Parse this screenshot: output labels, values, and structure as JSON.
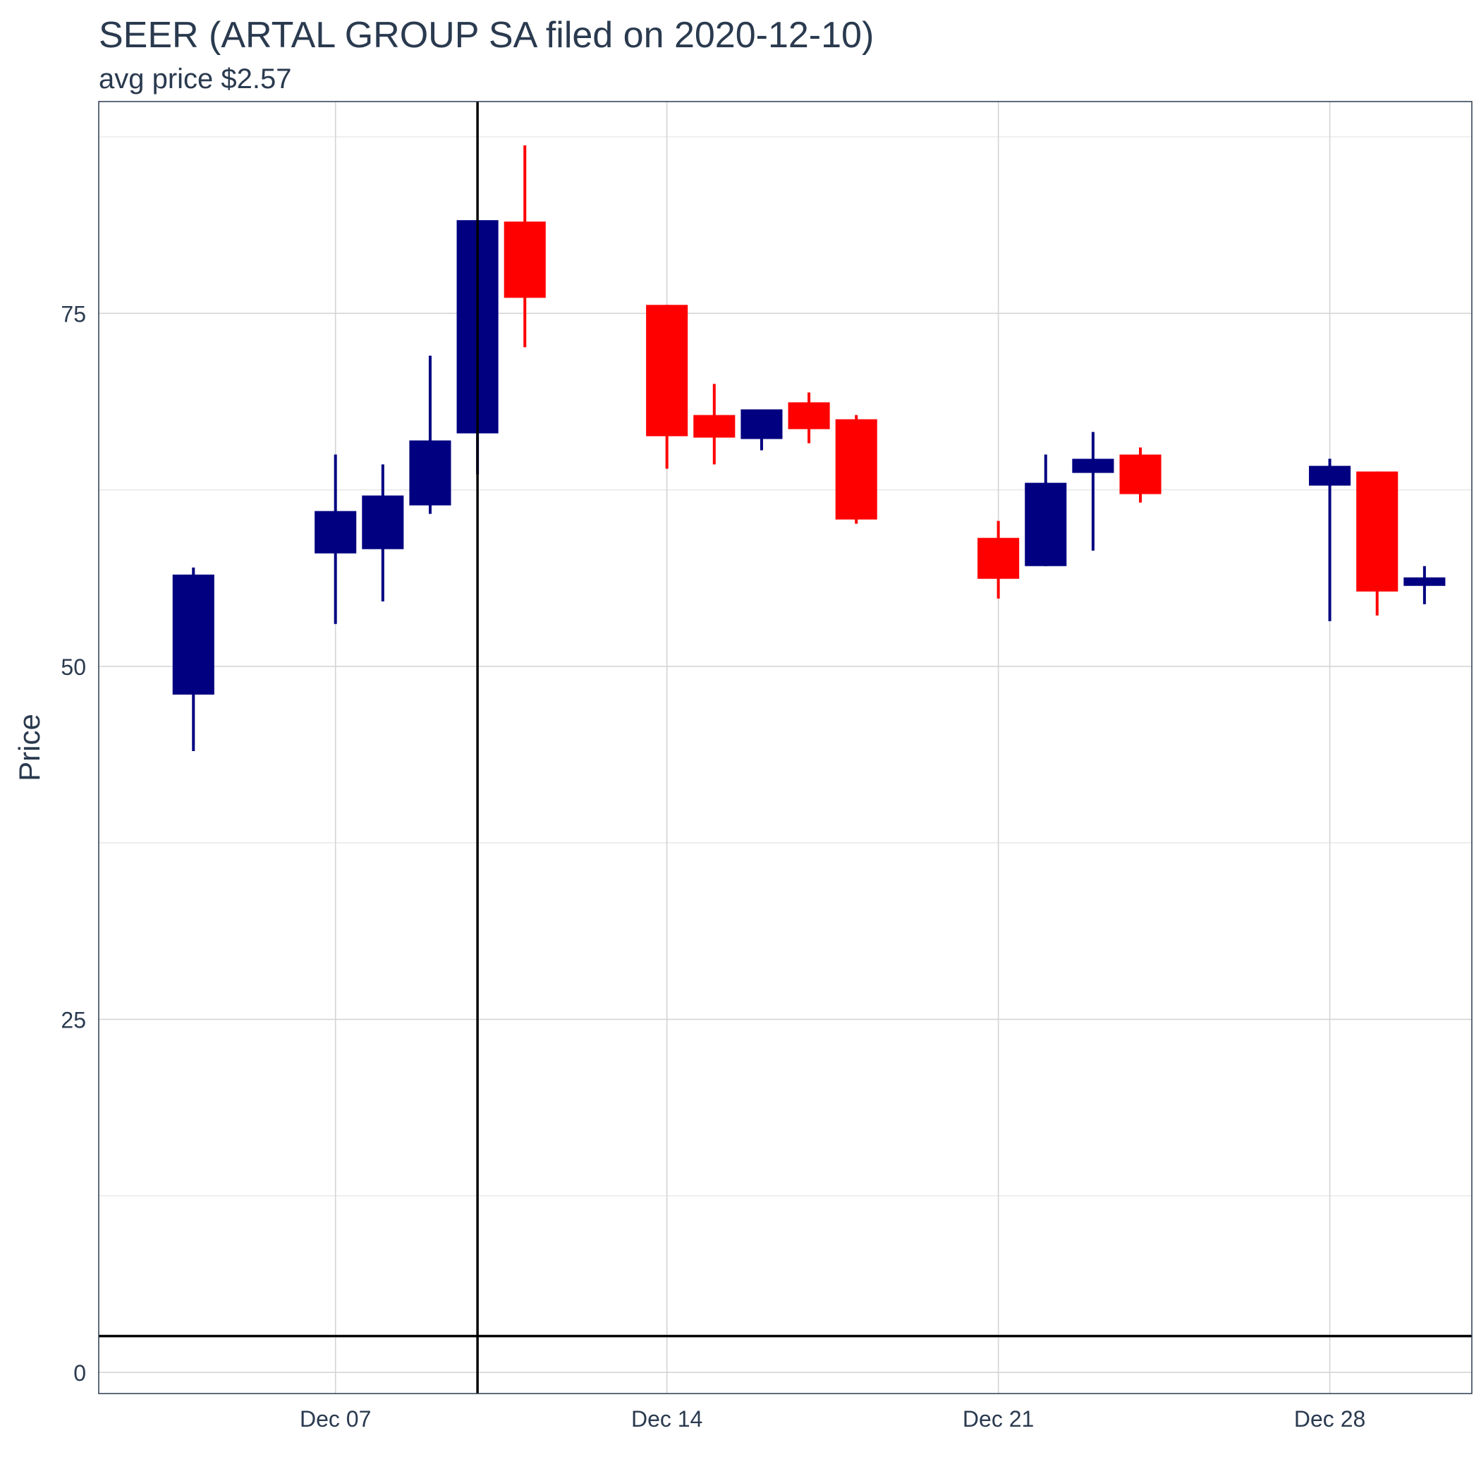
{
  "chart_data": {
    "type": "candlestick",
    "title": "SEER (ARTAL GROUP SA filed on 2020-12-10)",
    "subtitle": "avg price $2.57",
    "ylabel": "Price",
    "xlabel": "",
    "ylim": [
      -1.5,
      90
    ],
    "x_ticks": [
      {
        "label": "Dec 07",
        "date": "2020-12-07"
      },
      {
        "label": "Dec 14",
        "date": "2020-12-14"
      },
      {
        "label": "Dec 21",
        "date": "2020-12-21"
      },
      {
        "label": "Dec 28",
        "date": "2020-12-28"
      }
    ],
    "x_range": [
      "2020-12-02",
      "2020-12-31"
    ],
    "y_ticks": [
      0,
      25,
      50,
      75
    ],
    "grid": true,
    "colors": {
      "up": "#000080",
      "down": "#ff0000",
      "reference": "#000000"
    },
    "reference_lines": {
      "vertical_date": "2020-12-10",
      "horizontal_price": 2.57
    },
    "candles": [
      {
        "date": "2020-12-04",
        "open": 48.0,
        "high": 57.0,
        "low": 44.0,
        "close": 56.5
      },
      {
        "date": "2020-12-07",
        "open": 58.0,
        "high": 65.0,
        "low": 53.0,
        "close": 61.0
      },
      {
        "date": "2020-12-08",
        "open": 58.3,
        "high": 64.3,
        "low": 54.6,
        "close": 62.1
      },
      {
        "date": "2020-12-09",
        "open": 61.4,
        "high": 72.0,
        "low": 60.8,
        "close": 66.0
      },
      {
        "date": "2020-12-10",
        "open": 66.5,
        "high": 81.6,
        "low": 63.6,
        "close": 81.6
      },
      {
        "date": "2020-12-11",
        "open": 81.5,
        "high": 86.9,
        "low": 72.6,
        "close": 76.1
      },
      {
        "date": "2020-12-14",
        "open": 75.6,
        "high": 75.6,
        "low": 64.0,
        "close": 66.3
      },
      {
        "date": "2020-12-15",
        "open": 67.8,
        "high": 70.0,
        "low": 64.3,
        "close": 66.2
      },
      {
        "date": "2020-12-16",
        "open": 66.1,
        "high": 68.2,
        "low": 65.3,
        "close": 68.2
      },
      {
        "date": "2020-12-17",
        "open": 68.7,
        "high": 69.4,
        "low": 65.8,
        "close": 66.8
      },
      {
        "date": "2020-12-18",
        "open": 67.5,
        "high": 67.8,
        "low": 60.1,
        "close": 60.4
      },
      {
        "date": "2020-12-21",
        "open": 59.1,
        "high": 60.3,
        "low": 54.8,
        "close": 56.2
      },
      {
        "date": "2020-12-22",
        "open": 57.1,
        "high": 65.0,
        "low": 57.1,
        "close": 63.0
      },
      {
        "date": "2020-12-23",
        "open": 63.7,
        "high": 66.6,
        "low": 58.2,
        "close": 64.7
      },
      {
        "date": "2020-12-24",
        "open": 65.0,
        "high": 65.5,
        "low": 61.6,
        "close": 62.2
      },
      {
        "date": "2020-12-28",
        "open": 62.8,
        "high": 64.7,
        "low": 53.2,
        "close": 64.2
      },
      {
        "date": "2020-12-29",
        "open": 63.8,
        "high": 63.8,
        "low": 53.6,
        "close": 55.3
      },
      {
        "date": "2020-12-30",
        "open": 55.7,
        "high": 57.1,
        "low": 54.4,
        "close": 56.3
      }
    ]
  }
}
